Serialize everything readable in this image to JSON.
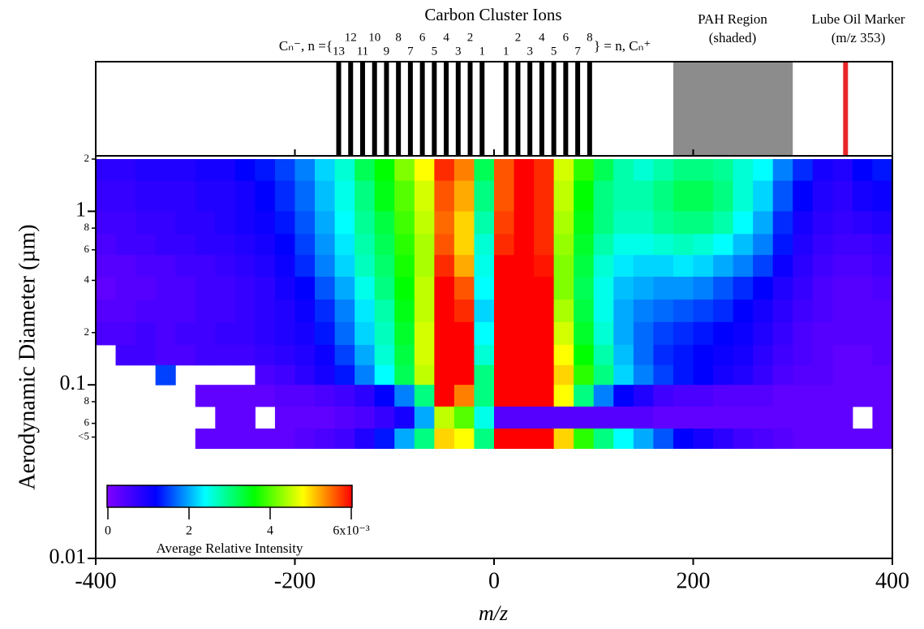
{
  "chart_data": {
    "type": "heatmap",
    "title": "Carbon Cluster Ions",
    "xlabel": "m/z",
    "ylabel": "Aerodynamic Diameter (µm)",
    "xlim": [
      -400,
      400
    ],
    "xticks": [
      -400,
      -200,
      0,
      200,
      400
    ],
    "ylim": [
      0.01,
      2
    ],
    "log_y": true,
    "yticks": [
      0.01,
      0.1,
      1
    ],
    "yticks_minor": [
      2,
      {
        "value": 0.8,
        "label": "8"
      },
      {
        "value": 0.6,
        "label": "6"
      },
      {
        "value": 0.4,
        "label": "4"
      },
      {
        "value": 0.2,
        "label": "2"
      },
      {
        "value": 0.08,
        "label": "8"
      },
      {
        "value": 0.06,
        "label": "6"
      },
      {
        "value": 0.05,
        "label": "<5"
      }
    ],
    "clusters": {
      "neg_label": "Cₙ⁻, n ={",
      "pos_label": "} = n, Cₙ⁺",
      "color": "#000000",
      "negative": {
        "n": [
          1,
          2,
          3,
          4,
          5,
          6,
          7,
          8,
          9,
          10,
          11,
          12,
          13
        ],
        "mz": [
          -12,
          -24,
          -36,
          -48,
          -60,
          -72,
          -84,
          -96,
          -108,
          -120,
          -132,
          -144,
          -156
        ]
      },
      "positive": {
        "n": [
          1,
          2,
          3,
          4,
          5,
          6,
          7,
          8
        ],
        "mz": [
          12,
          24,
          36,
          48,
          60,
          72,
          84,
          96
        ]
      }
    },
    "pah": {
      "label": "PAH Region",
      "sublabel": "(shaded)",
      "range": [
        180,
        300
      ],
      "color": "#8c8c8c"
    },
    "lube": {
      "label": "Lube Oil Marker",
      "sublabel": "(m/z 353)",
      "mz": 353,
      "color": "#e8262a"
    },
    "colorbar": {
      "label": "Average Relative Intensity",
      "lim": [
        0,
        6
      ],
      "ticks": [
        0,
        2,
        4,
        {
          "value": 6,
          "label": "6x10⁻³"
        }
      ],
      "colormap": [
        "#8000ff",
        "#0000ff",
        "#00ffff",
        "#00ff00",
        "#ffff00",
        "#ff0000"
      ]
    },
    "heatmap": {
      "mz_bins": [
        -400,
        -380,
        -360,
        -340,
        -320,
        -300,
        -280,
        -260,
        -240,
        -220,
        -200,
        -180,
        -160,
        -140,
        -120,
        -100,
        -80,
        -60,
        -40,
        -20,
        0,
        20,
        40,
        60,
        80,
        100,
        120,
        140,
        160,
        180,
        200,
        220,
        240,
        260,
        280,
        300,
        320,
        340,
        360,
        380,
        400
      ],
      "size_bins": [
        2,
        1.5,
        1,
        0.74,
        0.56,
        0.42,
        0.31,
        0.23,
        0.17,
        0.13,
        0.1,
        0.075,
        0.056,
        0.043
      ],
      "values": [
        [
          0.8,
          0.8,
          0.9,
          0.9,
          0.9,
          1.0,
          1.0,
          1.2,
          1.3,
          1.5,
          1.8,
          2.2,
          2.6,
          3.2,
          3.6,
          4.2,
          4.8,
          5.8,
          5.4,
          3.2,
          5.6,
          6,
          5.8,
          4.6,
          3.8,
          3.2,
          2.8,
          2.6,
          2.8,
          3.0,
          3.0,
          2.9,
          2.6,
          2.4,
          1.8,
          1.4,
          1.0,
          0.9,
          1.2,
          1.3
        ],
        [
          0.7,
          0.7,
          0.8,
          0.8,
          0.8,
          0.9,
          0.9,
          1.0,
          1.2,
          1.4,
          1.7,
          2.1,
          2.5,
          3.0,
          3.5,
          4.0,
          4.6,
          5.6,
          5.2,
          3.0,
          5.6,
          6,
          5.8,
          4.5,
          3.6,
          3.0,
          2.8,
          2.8,
          3.0,
          3.2,
          3.2,
          3.0,
          2.6,
          2.2,
          1.6,
          1.2,
          0.9,
          0.8,
          1.0,
          1.1
        ],
        [
          0.6,
          0.6,
          0.7,
          0.7,
          0.8,
          0.8,
          0.9,
          1.0,
          1.1,
          1.3,
          1.6,
          2.0,
          2.4,
          2.9,
          3.3,
          3.9,
          4.5,
          5.5,
          5.0,
          2.8,
          5.7,
          6,
          5.8,
          4.4,
          3.5,
          3.0,
          2.7,
          2.7,
          2.9,
          3.0,
          3.0,
          2.8,
          2.4,
          2.0,
          1.4,
          1.0,
          0.8,
          0.7,
          0.8,
          0.9
        ],
        [
          0.5,
          0.6,
          0.6,
          0.7,
          0.7,
          0.8,
          0.8,
          0.9,
          1.0,
          1.2,
          1.5,
          1.9,
          2.3,
          2.8,
          3.2,
          3.8,
          4.4,
          5.6,
          5.0,
          2.6,
          5.8,
          6,
          5.8,
          4.3,
          3.4,
          2.8,
          2.5,
          2.5,
          2.6,
          2.7,
          2.6,
          2.4,
          2.1,
          1.8,
          1.3,
          0.9,
          0.7,
          0.6,
          0.6,
          0.7
        ],
        [
          0.4,
          0.4,
          0.5,
          0.5,
          0.6,
          0.6,
          0.7,
          0.8,
          0.9,
          1.1,
          1.4,
          1.8,
          2.2,
          2.7,
          3.1,
          3.7,
          4.4,
          5.8,
          5.2,
          2.5,
          6,
          6,
          5.9,
          4.2,
          3.3,
          2.6,
          2.3,
          2.2,
          2.2,
          2.3,
          2.2,
          2.0,
          1.8,
          1.5,
          1.1,
          0.8,
          0.6,
          0.5,
          0.5,
          0.6
        ],
        [
          0.3,
          0.4,
          0.4,
          0.5,
          0.5,
          0.6,
          0.6,
          0.7,
          0.8,
          1.0,
          1.2,
          1.6,
          2.0,
          2.5,
          3.0,
          3.6,
          4.5,
          6,
          5.6,
          2.4,
          6,
          6,
          6,
          4.2,
          3.2,
          2.5,
          2.1,
          2.0,
          1.9,
          1.9,
          1.8,
          1.6,
          1.4,
          1.2,
          0.9,
          0.7,
          0.5,
          0.4,
          0.4,
          0.5
        ],
        [
          0.4,
          0.4,
          0.5,
          0.5,
          0.5,
          0.6,
          0.6,
          0.7,
          0.8,
          0.9,
          1.1,
          1.4,
          1.8,
          2.3,
          2.8,
          3.5,
          4.5,
          6,
          5.8,
          2.2,
          6,
          6,
          6,
          4.4,
          3.3,
          2.5,
          2.0,
          1.8,
          1.7,
          1.6,
          1.5,
          1.4,
          1.2,
          1.0,
          0.8,
          0.6,
          0.5,
          0.4,
          0.4,
          0.4
        ],
        [
          0.5,
          0.5,
          0.6,
          0.5,
          0.6,
          0.6,
          0.7,
          0.7,
          0.8,
          0.9,
          1.0,
          1.3,
          1.7,
          2.2,
          2.7,
          3.4,
          4.6,
          6,
          6,
          2.4,
          6,
          6,
          6,
          4.6,
          3.4,
          2.6,
          2.0,
          1.7,
          1.5,
          1.4,
          1.3,
          1.2,
          1.1,
          0.9,
          0.7,
          0.5,
          0.4,
          0.4,
          0.4,
          0.4
        ],
        [
          null,
          0.6,
          0.6,
          0.5,
          0.5,
          0.6,
          0.6,
          0.6,
          0.7,
          0.8,
          0.9,
          1.1,
          1.5,
          2.0,
          2.6,
          3.3,
          4.6,
          6,
          6,
          2.6,
          6,
          6,
          6,
          4.8,
          3.6,
          2.8,
          2.1,
          1.7,
          1.4,
          1.3,
          1.2,
          1.1,
          1.0,
          0.8,
          0.6,
          0.5,
          0.4,
          0.3,
          0.3,
          0.4
        ],
        [
          null,
          null,
          null,
          1.5,
          null,
          null,
          null,
          null,
          0.5,
          0.6,
          0.8,
          1.0,
          1.3,
          1.8,
          2.4,
          3.2,
          4.5,
          6,
          6,
          3.0,
          6,
          6,
          6,
          5.0,
          3.8,
          3.0,
          2.2,
          1.8,
          1.5,
          1.3,
          1.2,
          1.0,
          0.9,
          0.7,
          0.5,
          0.4,
          0.4,
          0.3,
          0.3,
          0.3
        ],
        [
          null,
          null,
          null,
          null,
          null,
          0.3,
          0.3,
          0.3,
          0.3,
          0.4,
          0.4,
          0.5,
          0.6,
          0.8,
          1.2,
          1.8,
          3.0,
          6,
          5.4,
          3.0,
          6,
          6,
          6,
          4.8,
          3.0,
          1.8,
          1.2,
          0.9,
          0.6,
          0.5,
          0.5,
          0.4,
          0.4,
          0.4,
          0.3,
          0.3,
          0.3,
          0.3,
          0.3,
          0.3
        ],
        [
          null,
          null,
          null,
          null,
          null,
          null,
          0.3,
          0.3,
          null,
          0.3,
          0.3,
          0.3,
          0.4,
          0.5,
          0.7,
          1.0,
          2.0,
          4.5,
          4.0,
          2.5,
          0.4,
          0.4,
          0.4,
          0.4,
          0.4,
          0.4,
          0.4,
          0.4,
          0.3,
          0.3,
          0.3,
          0.3,
          0.3,
          0.3,
          0.3,
          0.3,
          0.3,
          0.3,
          null,
          0.3
        ],
        [
          null,
          null,
          null,
          null,
          null,
          0.3,
          0.3,
          0.3,
          0.3,
          0.3,
          0.4,
          0.5,
          0.6,
          0.9,
          1.3,
          2.0,
          3.0,
          5.0,
          4.8,
          3.0,
          6,
          6,
          6,
          5.0,
          3.8,
          3.0,
          2.4,
          2.0,
          1.6,
          1.2,
          1.0,
          0.8,
          0.6,
          0.5,
          0.4,
          0.3,
          0.3,
          0.3,
          0.3,
          0.3
        ]
      ]
    }
  }
}
